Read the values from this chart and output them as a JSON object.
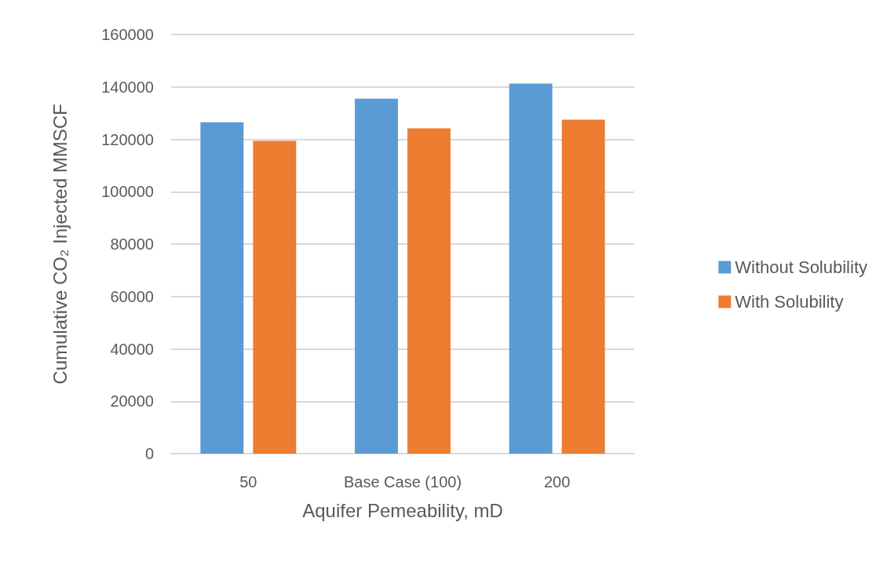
{
  "chart_data": {
    "type": "bar",
    "xlabel": "Aquifer Pemeability, mD",
    "ylabel": "Cumulative CO₂ Injected MMSCF",
    "categories": [
      "50",
      "Base Case (100)",
      "200"
    ],
    "series": [
      {
        "name": "Without Solubility",
        "color": "#5b9bd5",
        "values": [
          126500,
          135500,
          141300
        ]
      },
      {
        "name": "With Solubility",
        "color": "#ed7d31",
        "values": [
          119400,
          124200,
          127500
        ]
      }
    ],
    "ylim": [
      0,
      160000
    ],
    "yticks": [
      0,
      20000,
      40000,
      60000,
      80000,
      100000,
      120000,
      140000,
      160000
    ],
    "grid": "y",
    "legend": "right"
  }
}
